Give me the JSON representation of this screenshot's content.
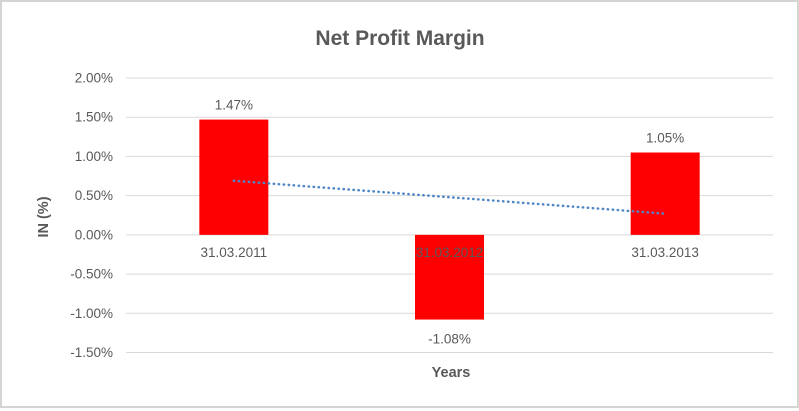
{
  "chart_data": {
    "type": "bar",
    "title": "Net Profit Margin",
    "xlabel": "Years",
    "ylabel": "IN (%)",
    "categories": [
      "31.03.2011",
      "31.03.2012",
      "31.03.2013"
    ],
    "series": [
      {
        "name": "Net Profit Margin",
        "color": "#ff0000",
        "values": [
          1.47,
          -1.08,
          1.05
        ]
      }
    ],
    "data_labels": [
      "1.47%",
      "-1.08%",
      "1.05%"
    ],
    "y_ticks": [
      {
        "label": "2.00%",
        "value": 2.0
      },
      {
        "label": "1.50%",
        "value": 1.5
      },
      {
        "label": "1.00%",
        "value": 1.0
      },
      {
        "label": "0.50%",
        "value": 0.5
      },
      {
        "label": "0.00%",
        "value": 0.0
      },
      {
        "label": "-0.50%",
        "value": -0.5
      },
      {
        "label": "-1.00%",
        "value": -1.0
      },
      {
        "label": "-1.50%",
        "value": -1.5
      }
    ],
    "ylim": [
      -1.5,
      2.0
    ],
    "grid": true,
    "legend": "none",
    "trendline": {
      "type": "linear",
      "style": "dotted",
      "color": "#4e86c8",
      "start_value": 0.69,
      "end_value": 0.27
    }
  },
  "colors": {
    "bar": "#ff0000",
    "gridline": "#d9d9d9",
    "text": "#595959",
    "trendline": "#4e86c8",
    "frame_border": "#d4d4d4",
    "background": "#ffffff"
  }
}
